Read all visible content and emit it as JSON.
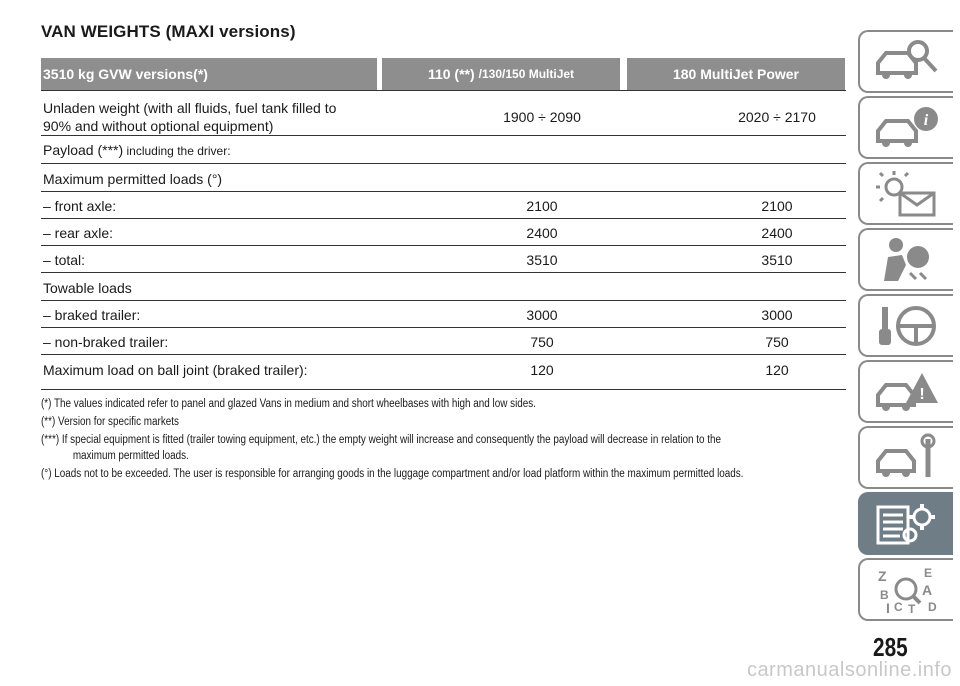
{
  "title": "VAN WEIGHTS (MAXI versions)",
  "table": {
    "header": {
      "col1": "3510 kg GVW versions(*)",
      "col2_main": "110 (**)",
      "col2_sub": "/130/150 MultiJet",
      "col3": "180 MultiJet Power"
    },
    "rows": [
      {
        "label": "Unladen weight (with all fluids, fuel tank filled to",
        "label2": "90% and without optional equipment)",
        "v1": "1900 ÷ 2090",
        "v2": "2020 ÷ 2170"
      },
      {
        "label": "Payload (***)",
        "label_small": " including the driver:",
        "v1": "",
        "v2": ""
      },
      {
        "label": "Maximum permitted loads (°)",
        "v1": "",
        "v2": ""
      },
      {
        "label": "– front axle:",
        "v1": "2100",
        "v2": "2100"
      },
      {
        "label": "– rear axle:",
        "v1": "2400",
        "v2": "2400"
      },
      {
        "label": "– total:",
        "v1": "3510",
        "v2": "3510"
      },
      {
        "label": "Towable loads",
        "v1": "",
        "v2": ""
      },
      {
        "label": "– braked trailer:",
        "v1": "3000",
        "v2": "3000"
      },
      {
        "label": "– non-braked trailer:",
        "v1": "750",
        "v2": "750"
      },
      {
        "label": "Maximum load on ball joint (braked trailer):",
        "v1": "120",
        "v2": "120"
      }
    ]
  },
  "notes": [
    "(*) The values indicated refer to panel and glazed Vans in medium and short wheelbases with high and low sides.",
    "(**) Version for specific markets",
    "(***) If special equipment is fitted (trailer towing equipment, etc.) the empty weight will increase and consequently the payload will decrease in relation to the",
    "maximum permitted loads.",
    "(°) Loads not to be exceeded. The user is responsible for arranging goods in the luggage compartment and/or load platform within the maximum permitted loads."
  ],
  "sidebar_tabs": [
    {
      "icon": "car-search-icon"
    },
    {
      "icon": "car-info-icon"
    },
    {
      "icon": "warning-light-icon"
    },
    {
      "icon": "airbag-passenger-icon"
    },
    {
      "icon": "key-steering-wheel-icon"
    },
    {
      "icon": "car-warning-icon"
    },
    {
      "icon": "car-service-icon"
    },
    {
      "icon": "technical-data-icon",
      "active": true
    },
    {
      "icon": "alphabetical-index-icon"
    }
  ],
  "page_number": "285",
  "watermark": "carmanualsonline.info"
}
